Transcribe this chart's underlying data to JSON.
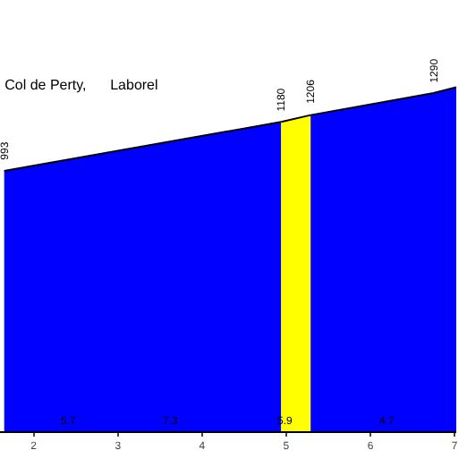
{
  "chart_data": {
    "type": "area",
    "title": "Col de Perty,      Laborel",
    "xlim": [
      1.6,
      7.02
    ],
    "xticks": [
      2,
      3,
      4,
      5,
      6,
      7
    ],
    "grid": false,
    "series": [
      {
        "color": "#0000ff",
        "x": [
          1.65,
          4.94
        ],
        "values": [
          993,
          1180
        ],
        "value_labels": [
          "993",
          "1180"
        ]
      },
      {
        "color": "#ffff00",
        "x": [
          4.94,
          5.29
        ],
        "values": [
          1180,
          1206
        ],
        "value_labels": [
          null,
          "1206"
        ]
      },
      {
        "color": "#0000ff",
        "x": [
          5.29,
          6.75,
          7.02
        ],
        "values": [
          1206,
          1290,
          1312
        ],
        "value_labels": [
          null,
          "1290",
          null
        ]
      }
    ],
    "annotations": [
      "5.7",
      "7.3",
      "5.9",
      "4.7"
    ]
  }
}
